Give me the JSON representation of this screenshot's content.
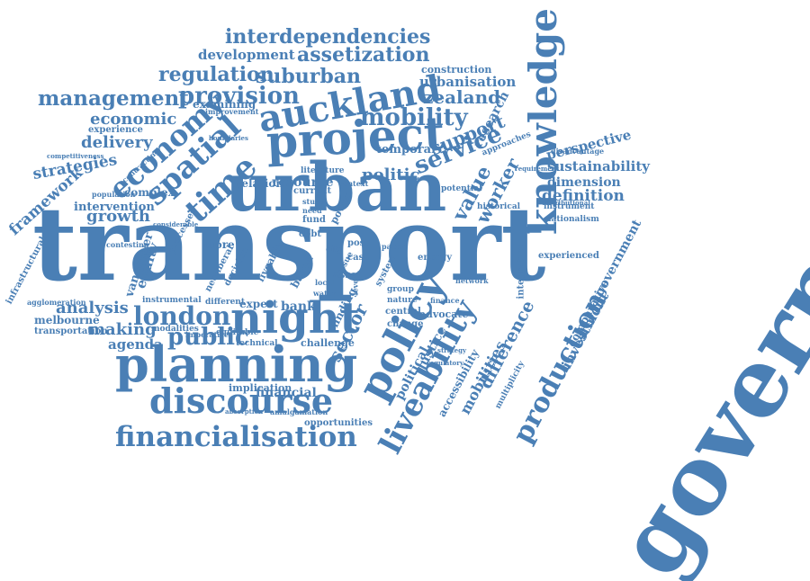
{
  "cloud": {
    "color": "#4a7fb5",
    "words": [
      "governance",
      "transport",
      "urban",
      "planning",
      "night",
      "project",
      "auckland",
      "knowledge",
      "policy",
      "liveability",
      "discourse",
      "financialisation",
      "economy",
      "spatial",
      "time",
      "mobility",
      "service",
      "production",
      "london",
      "public",
      "provision",
      "management",
      "suburban",
      "regulation",
      "assetization",
      "interdependencies",
      "development",
      "zealand",
      "urbanisation",
      "construction",
      "support",
      "value",
      "worker",
      "politic",
      "research",
      "sustainability",
      "definition",
      "dimension",
      "perspective",
      "sector",
      "difference",
      "mobilities",
      "accessibility",
      "political",
      "justice",
      "investment",
      "comparative",
      "government",
      "analysis",
      "making",
      "agenda",
      "growth",
      "framework",
      "strategies",
      "delivery",
      "economic",
      "experience",
      "equity",
      "vancouver",
      "intervention",
      "infrastructural",
      "melbourne",
      "transportation",
      "financial",
      "implication",
      "expert",
      "bank",
      "resource",
      "relation",
      "debt",
      "fund",
      "challenge",
      "opportunities",
      "finding",
      "based",
      "asset",
      "post",
      "case",
      "central",
      "change",
      "advocate",
      "temporal",
      "experienced",
      "instrument",
      "nationalism",
      "integration",
      "historical",
      "approaches",
      "examining",
      "improvement",
      "complex",
      "processes",
      "more",
      "neoliberal",
      "decision",
      "technical",
      "equitable",
      "imperative",
      "modalities",
      "instrumental",
      "different",
      "agglomeration",
      "competitiveness",
      "contesting",
      "population",
      "contracting",
      "current",
      "literature",
      "study",
      "need",
      "power",
      "context",
      "energy",
      "group",
      "nature",
      "system",
      "paper",
      "water",
      "local",
      "city",
      "level",
      "issue",
      "potential",
      "multiplicity",
      "network",
      "strategy",
      "regulatory",
      "distributional",
      "disadvantage",
      "requirement",
      "boundaries",
      "absorption",
      "amalgamation",
      "considerable",
      "finance",
      "liveable"
    ]
  }
}
